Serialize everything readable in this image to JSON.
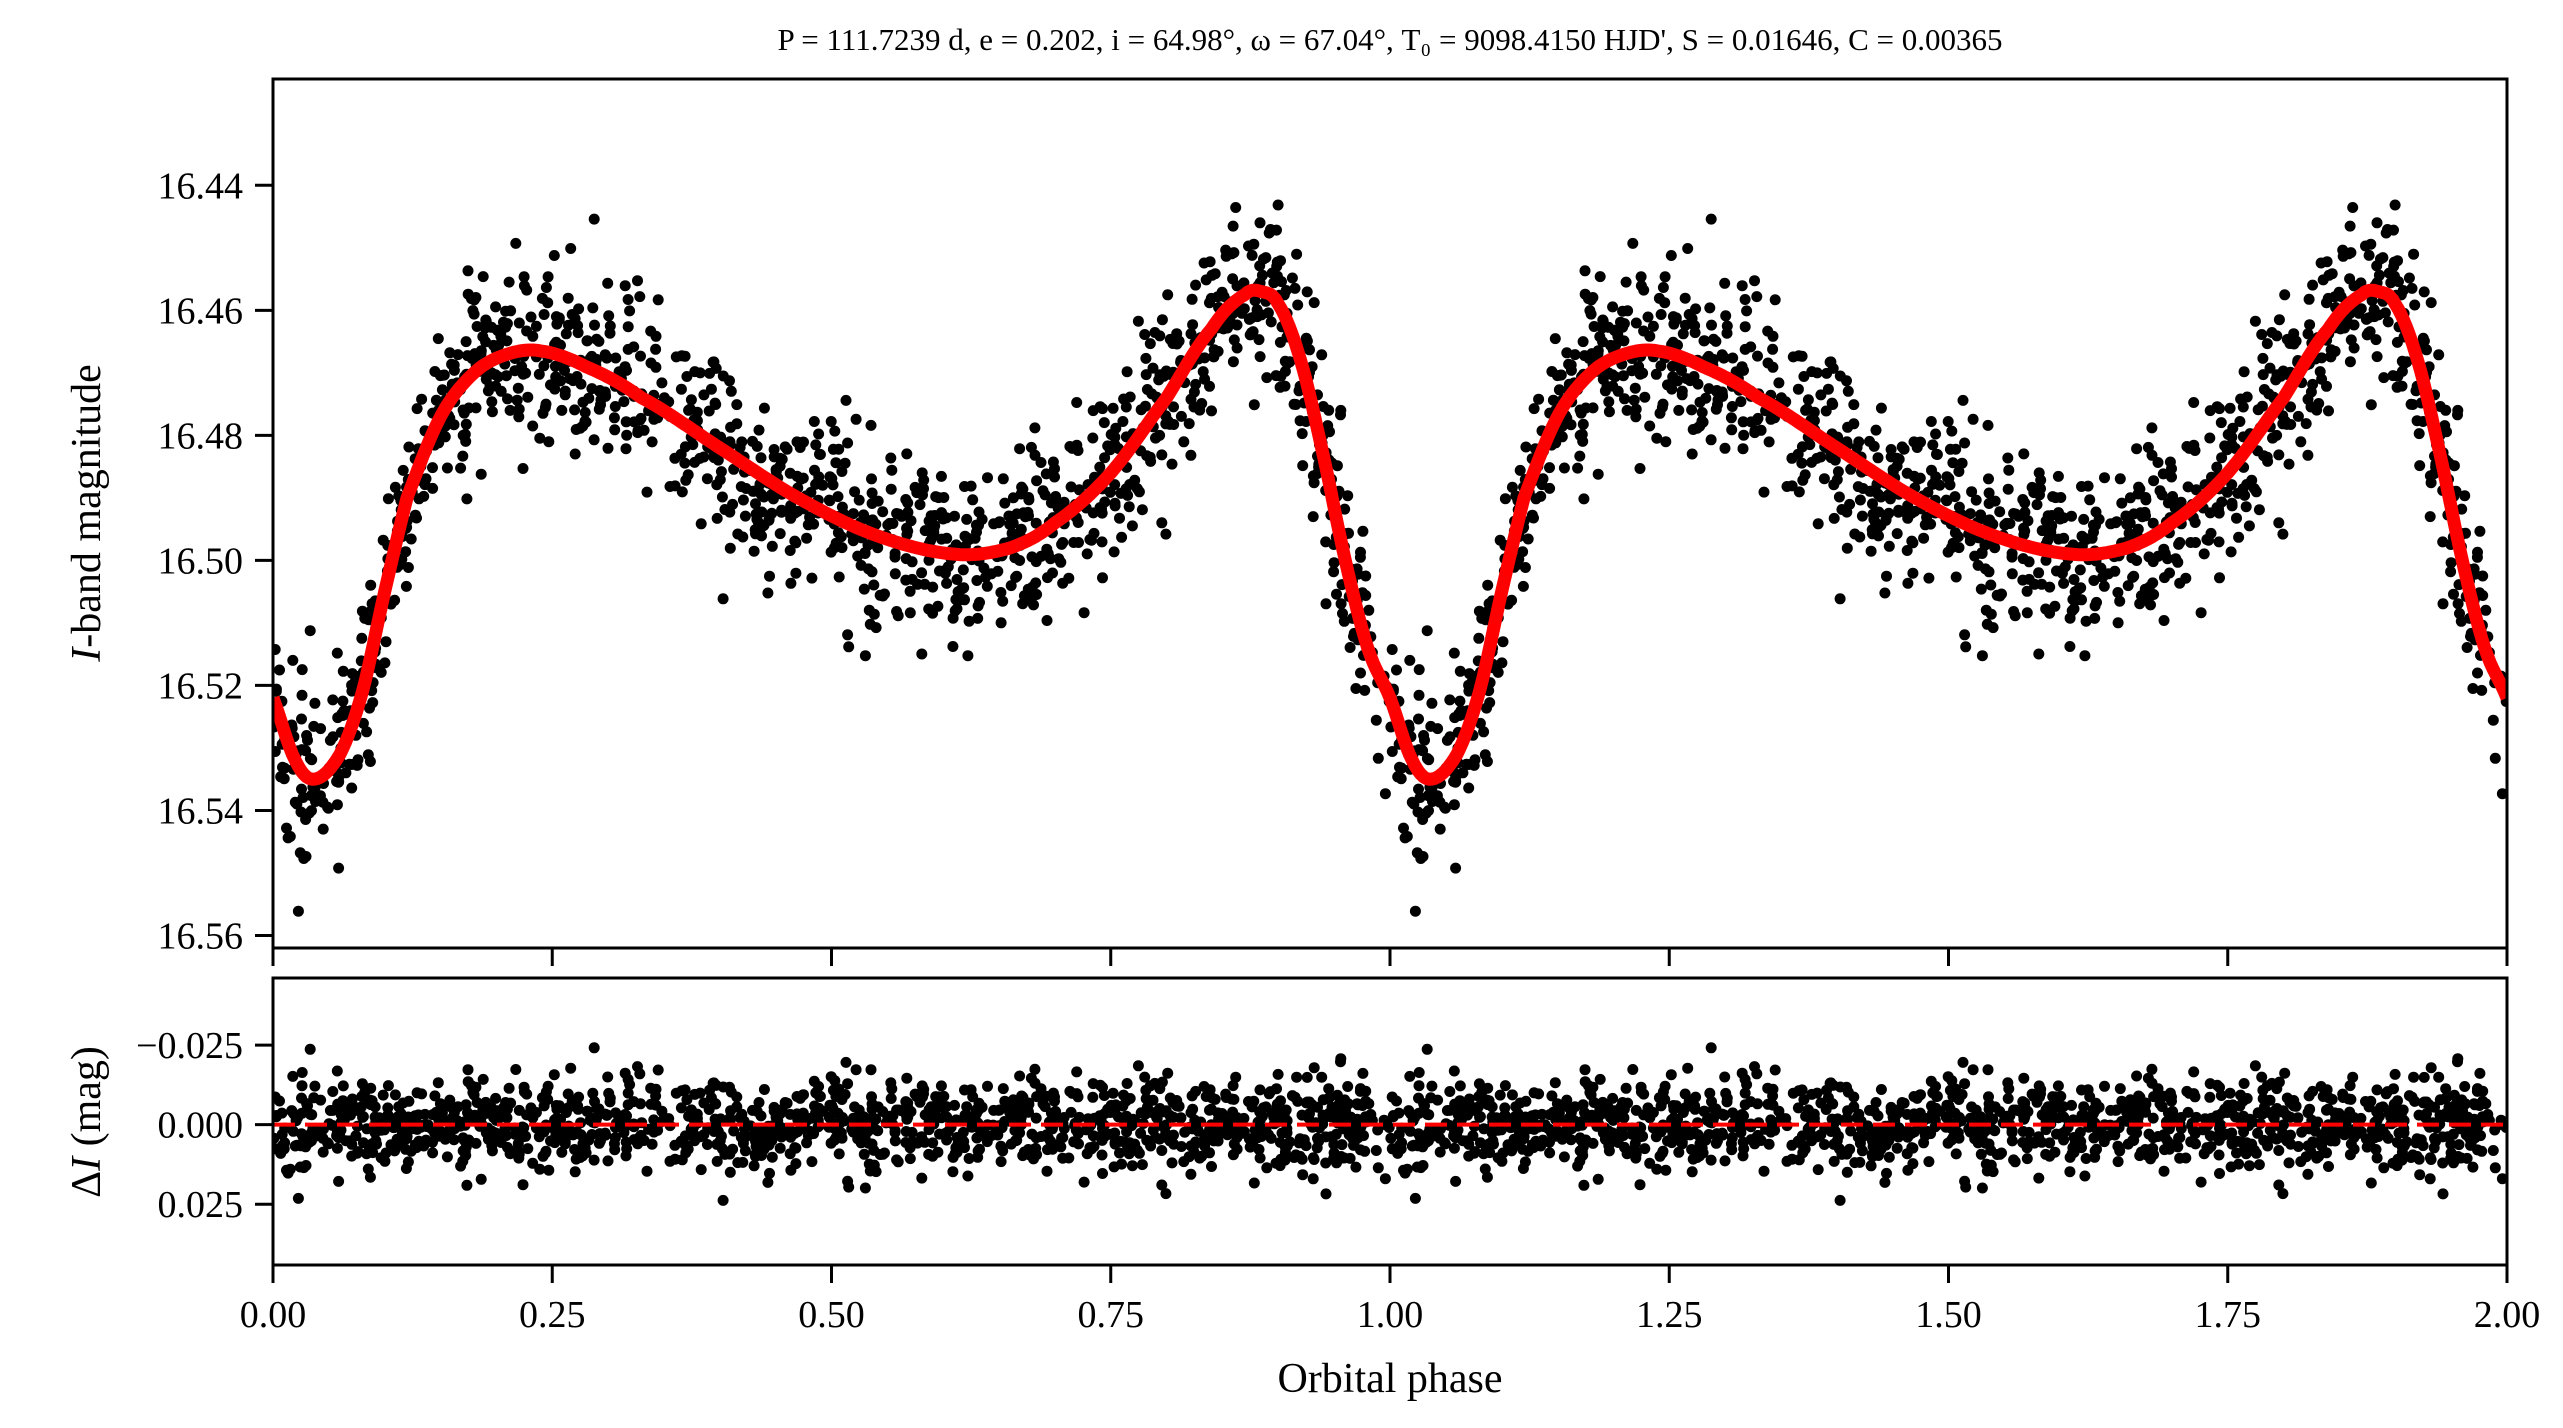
{
  "chart_data": [
    {
      "type": "scatter",
      "panel": "light-curve",
      "title": "P = 111.7239 d, e = 0.202, i = 64.98°, ω = 67.04°, T₀ = 9098.4150 HJD', S = 0.01646, C = 0.00365",
      "xlabel": "",
      "ylabel_italic": "I",
      "ylabel_rest": "-band magnitude",
      "xlim": [
        0.0,
        2.0
      ],
      "ylim": [
        16.562,
        16.423
      ],
      "y_inverted": true,
      "xticks": [
        0.0,
        0.25,
        0.5,
        0.75,
        1.0,
        1.25,
        1.5,
        1.75,
        2.0
      ],
      "yticks": [
        16.44,
        16.46,
        16.48,
        16.5,
        16.52,
        16.54,
        16.56
      ],
      "ytick_labels": [
        "16.44",
        "16.46",
        "16.48",
        "16.50",
        "16.52",
        "16.54",
        "16.56"
      ],
      "series": [
        {
          "name": "observations",
          "color": "#000000",
          "marker": "filled-circle",
          "n_points_per_cycle": 1300,
          "scatter_sigma_mag": 0.0075,
          "note_phase_repeated": true
        },
        {
          "name": "model",
          "color": "#ff0000",
          "style": "solid",
          "phase": [
            0.0,
            0.02,
            0.037,
            0.06,
            0.08,
            0.1,
            0.12,
            0.15,
            0.18,
            0.21,
            0.24,
            0.28,
            0.33,
            0.4,
            0.47,
            0.54,
            0.61,
            0.66,
            0.7,
            0.75,
            0.8,
            0.84,
            0.87,
            0.885,
            0.9,
            0.92,
            0.94,
            0.96,
            0.98,
            1.0
          ],
          "mag": [
            16.522,
            16.532,
            16.535,
            16.531,
            16.521,
            16.505,
            16.49,
            16.477,
            16.47,
            16.467,
            16.4665,
            16.469,
            16.474,
            16.482,
            16.49,
            16.496,
            16.499,
            16.498,
            16.494,
            16.486,
            16.474,
            16.463,
            16.4575,
            16.457,
            16.459,
            16.468,
            16.483,
            16.5,
            16.514,
            16.522
          ]
        }
      ]
    },
    {
      "type": "scatter",
      "panel": "residuals",
      "xlabel": "Orbital phase",
      "ylabel_delta": "Δ",
      "ylabel_italic": "I",
      "ylabel_rest": " (mag)",
      "xlim": [
        0.0,
        2.0
      ],
      "ylim": [
        0.0441,
        -0.0461
      ],
      "y_inverted": true,
      "xticks": [
        0.0,
        0.25,
        0.5,
        0.75,
        1.0,
        1.25,
        1.5,
        1.75,
        2.0
      ],
      "xtick_labels": [
        "0.00",
        "0.25",
        "0.50",
        "0.75",
        "1.00",
        "1.25",
        "1.50",
        "1.75",
        "2.00"
      ],
      "yticks": [
        -0.025,
        0.0,
        0.025
      ],
      "ytick_labels": [
        "−0.025",
        "0.000",
        "0.025"
      ],
      "series": [
        {
          "name": "residuals",
          "color": "#000000",
          "marker": "filled-circle",
          "scatter_sigma_mag": 0.0075
        },
        {
          "name": "zero-line",
          "color": "#ff0000",
          "style": "dashed",
          "value": 0.0
        }
      ]
    }
  ]
}
